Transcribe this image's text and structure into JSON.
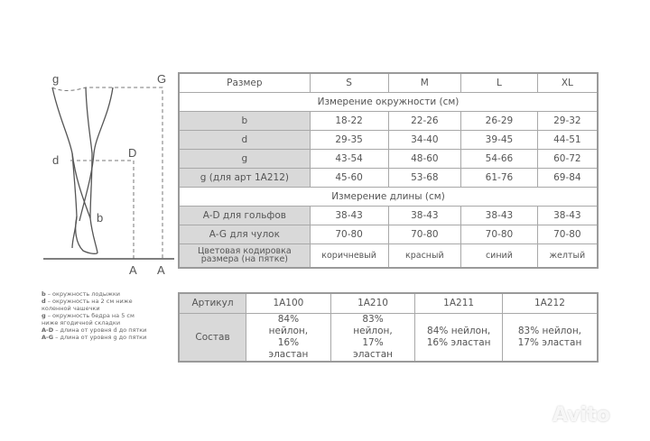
{
  "figure": {
    "g": "g",
    "G": "G",
    "d": "d",
    "D": "D",
    "b": "b",
    "A1": "A",
    "A2": "A"
  },
  "size_table": {
    "header": [
      "Размер",
      "S",
      "M",
      "L",
      "XL"
    ],
    "section_circumference": "Измерение окружности (см)",
    "circumference_rows": [
      {
        "label": "b",
        "values": [
          "18-22",
          "22-26",
          "26-29",
          "29-32"
        ]
      },
      {
        "label": "d",
        "values": [
          "29-35",
          "34-40",
          "39-45",
          "44-51"
        ]
      },
      {
        "label": "g",
        "values": [
          "43-54",
          "48-60",
          "54-66",
          "60-72"
        ]
      },
      {
        "label": "g (для арт 1A212)",
        "values": [
          "45-60",
          "53-68",
          "61-76",
          "69-84"
        ]
      }
    ],
    "section_length": "Измерение длины (см)",
    "length_rows": [
      {
        "label": "A-D для гольфов",
        "values": [
          "38-43",
          "38-43",
          "38-43",
          "38-43"
        ]
      },
      {
        "label": "A-G для чулок",
        "values": [
          "70-80",
          "70-80",
          "70-80",
          "70-80"
        ]
      }
    ],
    "color_row": {
      "label": "Цветовая кодировка размера (на пятке)",
      "values": [
        "коричневый",
        "красный",
        "синий",
        "желтый"
      ]
    }
  },
  "article_table": {
    "article_label": "Артикул",
    "composition_label": "Состав",
    "articles": [
      "1A100",
      "1A210",
      "1A211",
      "1A212"
    ],
    "compositions": [
      "84% нейлон, 16% эластан",
      "83% нейлон, 17% эластан",
      "84% нейлон, 16% эластан",
      "83% нейлон, 17% эластан"
    ]
  },
  "legend": [
    {
      "key": "b",
      "text": " – окружность лодыжки"
    },
    {
      "key": "d",
      "text": " – окружность на 2 см ниже коленной чашечки"
    },
    {
      "key": "g",
      "text": " – окружность бедра на 5 см ниже ягодичной складки"
    },
    {
      "key": "A-D",
      "text": " – длина от уровня d до пятки"
    },
    {
      "key": "A-G",
      "text": " – длина от уровня g до пятки"
    }
  ],
  "watermark": "Avito"
}
